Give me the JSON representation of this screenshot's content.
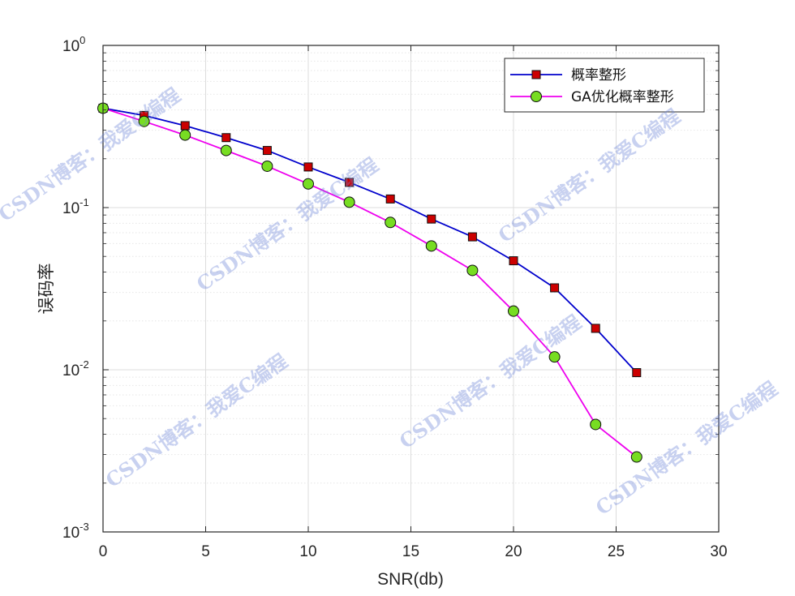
{
  "chart_data": {
    "type": "line",
    "xlabel": "SNR(db)",
    "ylabel": "误码率",
    "xlim": [
      0,
      30
    ],
    "ylim": [
      0.001,
      1
    ],
    "yscale": "log",
    "grid": true,
    "legend_position": "top-right",
    "x_ticks": [
      "0",
      "5",
      "10",
      "15",
      "20",
      "25",
      "30"
    ],
    "y_ticks": [
      {
        "base": "10",
        "exp": "0",
        "value": 1
      },
      {
        "base": "10",
        "exp": "-1",
        "value": 0.1
      },
      {
        "base": "10",
        "exp": "-2",
        "value": 0.01
      },
      {
        "base": "10",
        "exp": "-3",
        "value": 0.001
      }
    ],
    "x": [
      0,
      2,
      4,
      6,
      8,
      10,
      12,
      14,
      16,
      18,
      20,
      22,
      24,
      26
    ],
    "series": [
      {
        "name": "概率整形",
        "color": "#0000cc",
        "marker": "square",
        "marker_color": "#cc0000",
        "values": [
          0.41,
          0.37,
          0.32,
          0.27,
          0.225,
          0.178,
          0.143,
          0.113,
          0.085,
          0.066,
          0.047,
          0.032,
          0.018,
          0.0096
        ]
      },
      {
        "name": "GA优化概率整形",
        "color": "#ee00ee",
        "marker": "circle",
        "marker_color": "#77dd22",
        "values": [
          0.41,
          0.34,
          0.28,
          0.225,
          0.18,
          0.14,
          0.108,
          0.081,
          0.058,
          0.041,
          0.023,
          0.012,
          0.0046,
          0.0029
        ]
      }
    ]
  },
  "watermarks": [
    "CSDN博客：我爱C编程"
  ]
}
